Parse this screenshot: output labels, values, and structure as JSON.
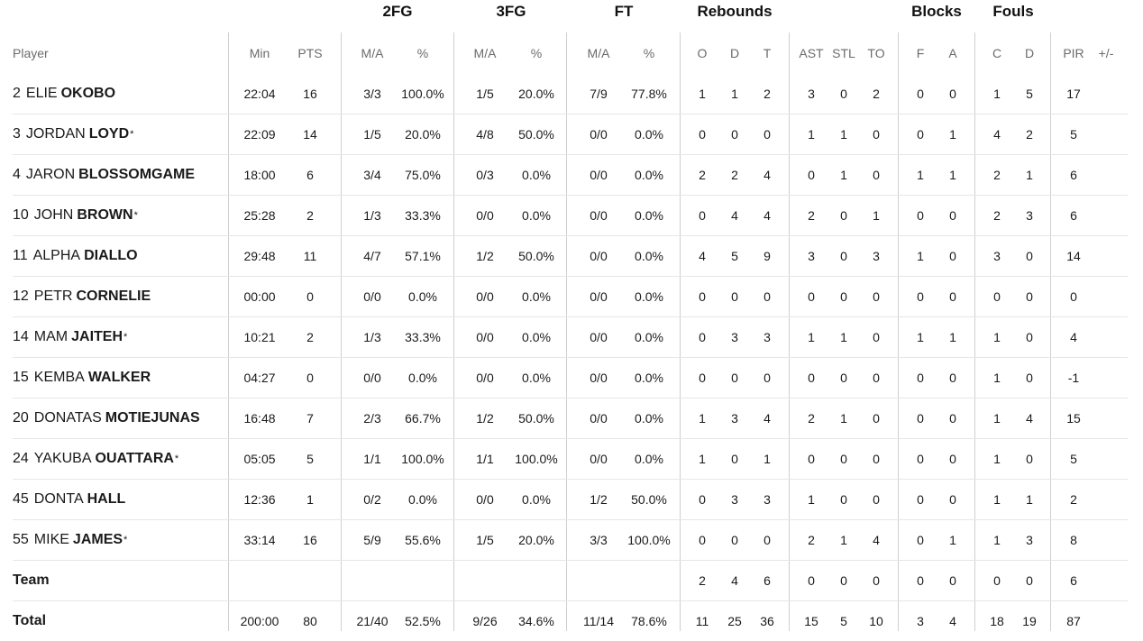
{
  "group_headers": [
    "2FG",
    "3FG",
    "FT",
    "Rebounds",
    "Blocks",
    "Fouls"
  ],
  "columns": [
    "Player",
    "Min",
    "PTS",
    "M/A",
    "%",
    "M/A",
    "%",
    "M/A",
    "%",
    "O",
    "D",
    "T",
    "AST",
    "STL",
    "TO",
    "F",
    "A",
    "C",
    "D",
    "PIR",
    "+/-"
  ],
  "players": [
    {
      "number": "2",
      "first": "ELIE",
      "last": "OKOBO",
      "star": "",
      "stats": [
        "22:04",
        "16",
        "3/3",
        "100.0%",
        "1/5",
        "20.0%",
        "7/9",
        "77.8%",
        "1",
        "1",
        "2",
        "3",
        "0",
        "2",
        "0",
        "0",
        "1",
        "5",
        "17",
        ""
      ]
    },
    {
      "number": "3",
      "first": "JORDAN",
      "last": "LOYD",
      "star": "*",
      "stats": [
        "22:09",
        "14",
        "1/5",
        "20.0%",
        "4/8",
        "50.0%",
        "0/0",
        "0.0%",
        "0",
        "0",
        "0",
        "1",
        "1",
        "0",
        "0",
        "1",
        "4",
        "2",
        "5",
        ""
      ]
    },
    {
      "number": "4",
      "first": "JARON",
      "last": "BLOSSOMGAME",
      "star": "",
      "stats": [
        "18:00",
        "6",
        "3/4",
        "75.0%",
        "0/3",
        "0.0%",
        "0/0",
        "0.0%",
        "2",
        "2",
        "4",
        "0",
        "1",
        "0",
        "1",
        "1",
        "2",
        "1",
        "6",
        ""
      ]
    },
    {
      "number": "10",
      "first": "JOHN",
      "last": "BROWN",
      "star": "*",
      "stats": [
        "25:28",
        "2",
        "1/3",
        "33.3%",
        "0/0",
        "0.0%",
        "0/0",
        "0.0%",
        "0",
        "4",
        "4",
        "2",
        "0",
        "1",
        "0",
        "0",
        "2",
        "3",
        "6",
        ""
      ]
    },
    {
      "number": "11",
      "first": "ALPHA",
      "last": "DIALLO",
      "star": "",
      "stats": [
        "29:48",
        "11",
        "4/7",
        "57.1%",
        "1/2",
        "50.0%",
        "0/0",
        "0.0%",
        "4",
        "5",
        "9",
        "3",
        "0",
        "3",
        "1",
        "0",
        "3",
        "0",
        "14",
        ""
      ]
    },
    {
      "number": "12",
      "first": "PETR",
      "last": "CORNELIE",
      "star": "",
      "stats": [
        "00:00",
        "0",
        "0/0",
        "0.0%",
        "0/0",
        "0.0%",
        "0/0",
        "0.0%",
        "0",
        "0",
        "0",
        "0",
        "0",
        "0",
        "0",
        "0",
        "0",
        "0",
        "0",
        ""
      ]
    },
    {
      "number": "14",
      "first": "MAM",
      "last": "JAITEH",
      "star": "*",
      "stats": [
        "10:21",
        "2",
        "1/3",
        "33.3%",
        "0/0",
        "0.0%",
        "0/0",
        "0.0%",
        "0",
        "3",
        "3",
        "1",
        "1",
        "0",
        "1",
        "1",
        "1",
        "0",
        "4",
        ""
      ]
    },
    {
      "number": "15",
      "first": "KEMBA",
      "last": "WALKER",
      "star": "",
      "stats": [
        "04:27",
        "0",
        "0/0",
        "0.0%",
        "0/0",
        "0.0%",
        "0/0",
        "0.0%",
        "0",
        "0",
        "0",
        "0",
        "0",
        "0",
        "0",
        "0",
        "1",
        "0",
        "-1",
        ""
      ]
    },
    {
      "number": "20",
      "first": "DONATAS",
      "last": "MOTIEJUNAS",
      "star": "",
      "stats": [
        "16:48",
        "7",
        "2/3",
        "66.7%",
        "1/2",
        "50.0%",
        "0/0",
        "0.0%",
        "1",
        "3",
        "4",
        "2",
        "1",
        "0",
        "0",
        "0",
        "1",
        "4",
        "15",
        ""
      ]
    },
    {
      "number": "24",
      "first": "YAKUBA",
      "last": "OUATTARA",
      "star": "*",
      "stats": [
        "05:05",
        "5",
        "1/1",
        "100.0%",
        "1/1",
        "100.0%",
        "0/0",
        "0.0%",
        "1",
        "0",
        "1",
        "0",
        "0",
        "0",
        "0",
        "0",
        "1",
        "0",
        "5",
        ""
      ]
    },
    {
      "number": "45",
      "first": "DONTA",
      "last": "HALL",
      "star": "",
      "stats": [
        "12:36",
        "1",
        "0/2",
        "0.0%",
        "0/0",
        "0.0%",
        "1/2",
        "50.0%",
        "0",
        "3",
        "3",
        "1",
        "0",
        "0",
        "0",
        "0",
        "1",
        "1",
        "2",
        ""
      ]
    },
    {
      "number": "55",
      "first": "MIKE",
      "last": "JAMES",
      "star": "*",
      "stats": [
        "33:14",
        "16",
        "5/9",
        "55.6%",
        "1/5",
        "20.0%",
        "3/3",
        "100.0%",
        "0",
        "0",
        "0",
        "2",
        "1",
        "4",
        "0",
        "1",
        "1",
        "3",
        "8",
        ""
      ]
    }
  ],
  "team": {
    "label": "Team",
    "stats": [
      "",
      "",
      "",
      "",
      "",
      "",
      "",
      "",
      "2",
      "4",
      "6",
      "0",
      "0",
      "0",
      "0",
      "0",
      "0",
      "0",
      "6",
      ""
    ]
  },
  "total": {
    "label": "Total",
    "stats": [
      "200:00",
      "80",
      "21/40",
      "52.5%",
      "9/26",
      "34.6%",
      "11/14",
      "78.6%",
      "11",
      "25",
      "36",
      "15",
      "5",
      "10",
      "3",
      "4",
      "18",
      "19",
      "87",
      ""
    ]
  }
}
